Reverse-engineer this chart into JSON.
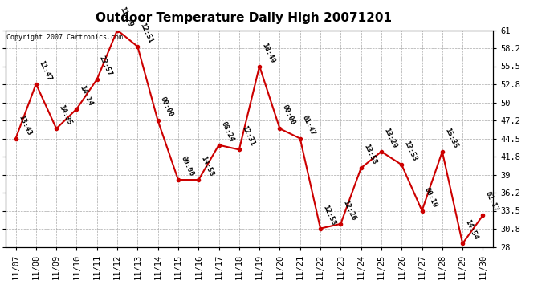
{
  "title": "Outdoor Temperature Daily High 20071201",
  "copyright_text": "Copyright 2007 Cartronics.com",
  "dates": [
    "11/07",
    "11/08",
    "11/09",
    "11/10",
    "11/11",
    "11/12",
    "11/13",
    "11/14",
    "11/15",
    "11/16",
    "11/17",
    "11/18",
    "11/19",
    "11/20",
    "11/21",
    "11/22",
    "11/23",
    "11/24",
    "11/25",
    "11/26",
    "11/27",
    "11/28",
    "11/29",
    "11/30"
  ],
  "values": [
    44.5,
    52.8,
    46.0,
    49.0,
    53.5,
    61.0,
    58.5,
    47.2,
    38.2,
    38.2,
    43.5,
    42.8,
    55.5,
    46.0,
    44.5,
    30.8,
    31.5,
    40.0,
    42.5,
    40.5,
    33.5,
    42.5,
    28.5,
    32.8
  ],
  "labels": [
    "13:43",
    "11:47",
    "14:35",
    "14:14",
    "23:57",
    "11:29",
    "12:51",
    "00:00",
    "00:00",
    "14:58",
    "08:24",
    "12:31",
    "18:49",
    "00:00",
    "01:47",
    "12:58",
    "12:26",
    "13:58",
    "13:29",
    "13:53",
    "00:10",
    "15:35",
    "14:54",
    "02:17"
  ],
  "line_color": "#cc0000",
  "marker_color": "#cc0000",
  "bg_color": "#ffffff",
  "plot_bg_color": "#ffffff",
  "grid_color": "#aaaaaa",
  "ylim_min": 28.0,
  "ylim_max": 61.0,
  "yticks": [
    28.0,
    30.8,
    33.5,
    36.2,
    39.0,
    41.8,
    44.5,
    47.2,
    50.0,
    52.8,
    55.5,
    58.2,
    61.0
  ],
  "title_fontsize": 11,
  "label_fontsize": 6.5,
  "copyright_fontsize": 6,
  "tick_fontsize": 7.5
}
